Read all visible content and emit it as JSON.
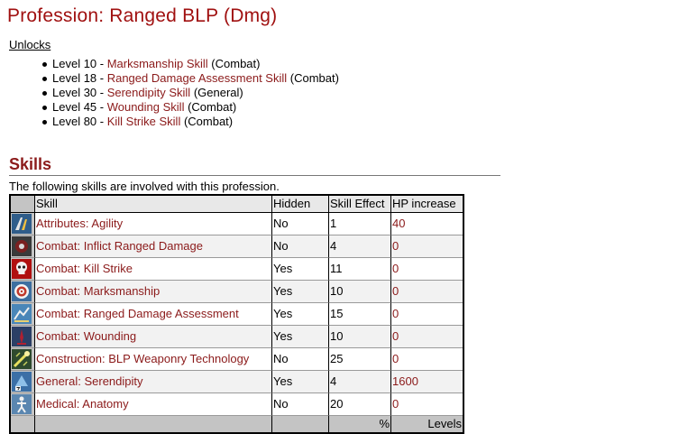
{
  "title": "Profession: Ranged BLP (Dmg)",
  "unlocks": {
    "heading": "Unlocks",
    "items": [
      {
        "level": "Level 10 - ",
        "skill": "Marksmanship Skill",
        "category": " (Combat)"
      },
      {
        "level": "Level 18 - ",
        "skill": "Ranged Damage Assessment Skill",
        "category": " (Combat)"
      },
      {
        "level": "Level 30 - ",
        "skill": "Serendipity Skill",
        "category": " (General)"
      },
      {
        "level": "Level 45 - ",
        "skill": "Wounding Skill",
        "category": " (Combat)"
      },
      {
        "level": "Level 80 - ",
        "skill": "Kill Strike Skill",
        "category": " (Combat)"
      }
    ]
  },
  "skills": {
    "heading": "Skills",
    "intro": "The following skills are involved with this profession.",
    "columns": {
      "skill": "Skill",
      "hidden": "Hidden",
      "effect": "Skill Effect",
      "hp": "HP increase"
    },
    "rows": [
      {
        "icon": "agility-icon",
        "skill": "Attributes: Agility",
        "hidden": "No",
        "effect": "1",
        "hp": "40"
      },
      {
        "icon": "ranged-damage-icon",
        "skill": "Combat: Inflict Ranged Damage",
        "hidden": "No",
        "effect": "4",
        "hp": "0"
      },
      {
        "icon": "skull-icon",
        "skill": "Combat: Kill Strike",
        "hidden": "Yes",
        "effect": "11",
        "hp": "0"
      },
      {
        "icon": "target-icon",
        "skill": "Combat: Marksmanship",
        "hidden": "Yes",
        "effect": "10",
        "hp": "0"
      },
      {
        "icon": "assessment-icon",
        "skill": "Combat: Ranged Damage Assessment",
        "hidden": "Yes",
        "effect": "15",
        "hp": "0"
      },
      {
        "icon": "wound-icon",
        "skill": "Combat: Wounding",
        "hidden": "Yes",
        "effect": "10",
        "hp": "0"
      },
      {
        "icon": "weaponry-tech-icon",
        "skill": "Construction: BLP Weaponry Technology",
        "hidden": "No",
        "effect": "25",
        "hp": "0"
      },
      {
        "icon": "serendipity-icon",
        "skill": "General: Serendipity",
        "hidden": "Yes",
        "effect": "4",
        "hp": "1600"
      },
      {
        "icon": "anatomy-icon",
        "skill": "Medical: Anatomy",
        "hidden": "No",
        "effect": "20",
        "hp": "0"
      }
    ],
    "footer": {
      "effect": "%",
      "hp": "Levels"
    }
  },
  "colors": {
    "link": "#8b1a1a",
    "title": "#a01010",
    "icon_column": "#c4c4c4"
  }
}
